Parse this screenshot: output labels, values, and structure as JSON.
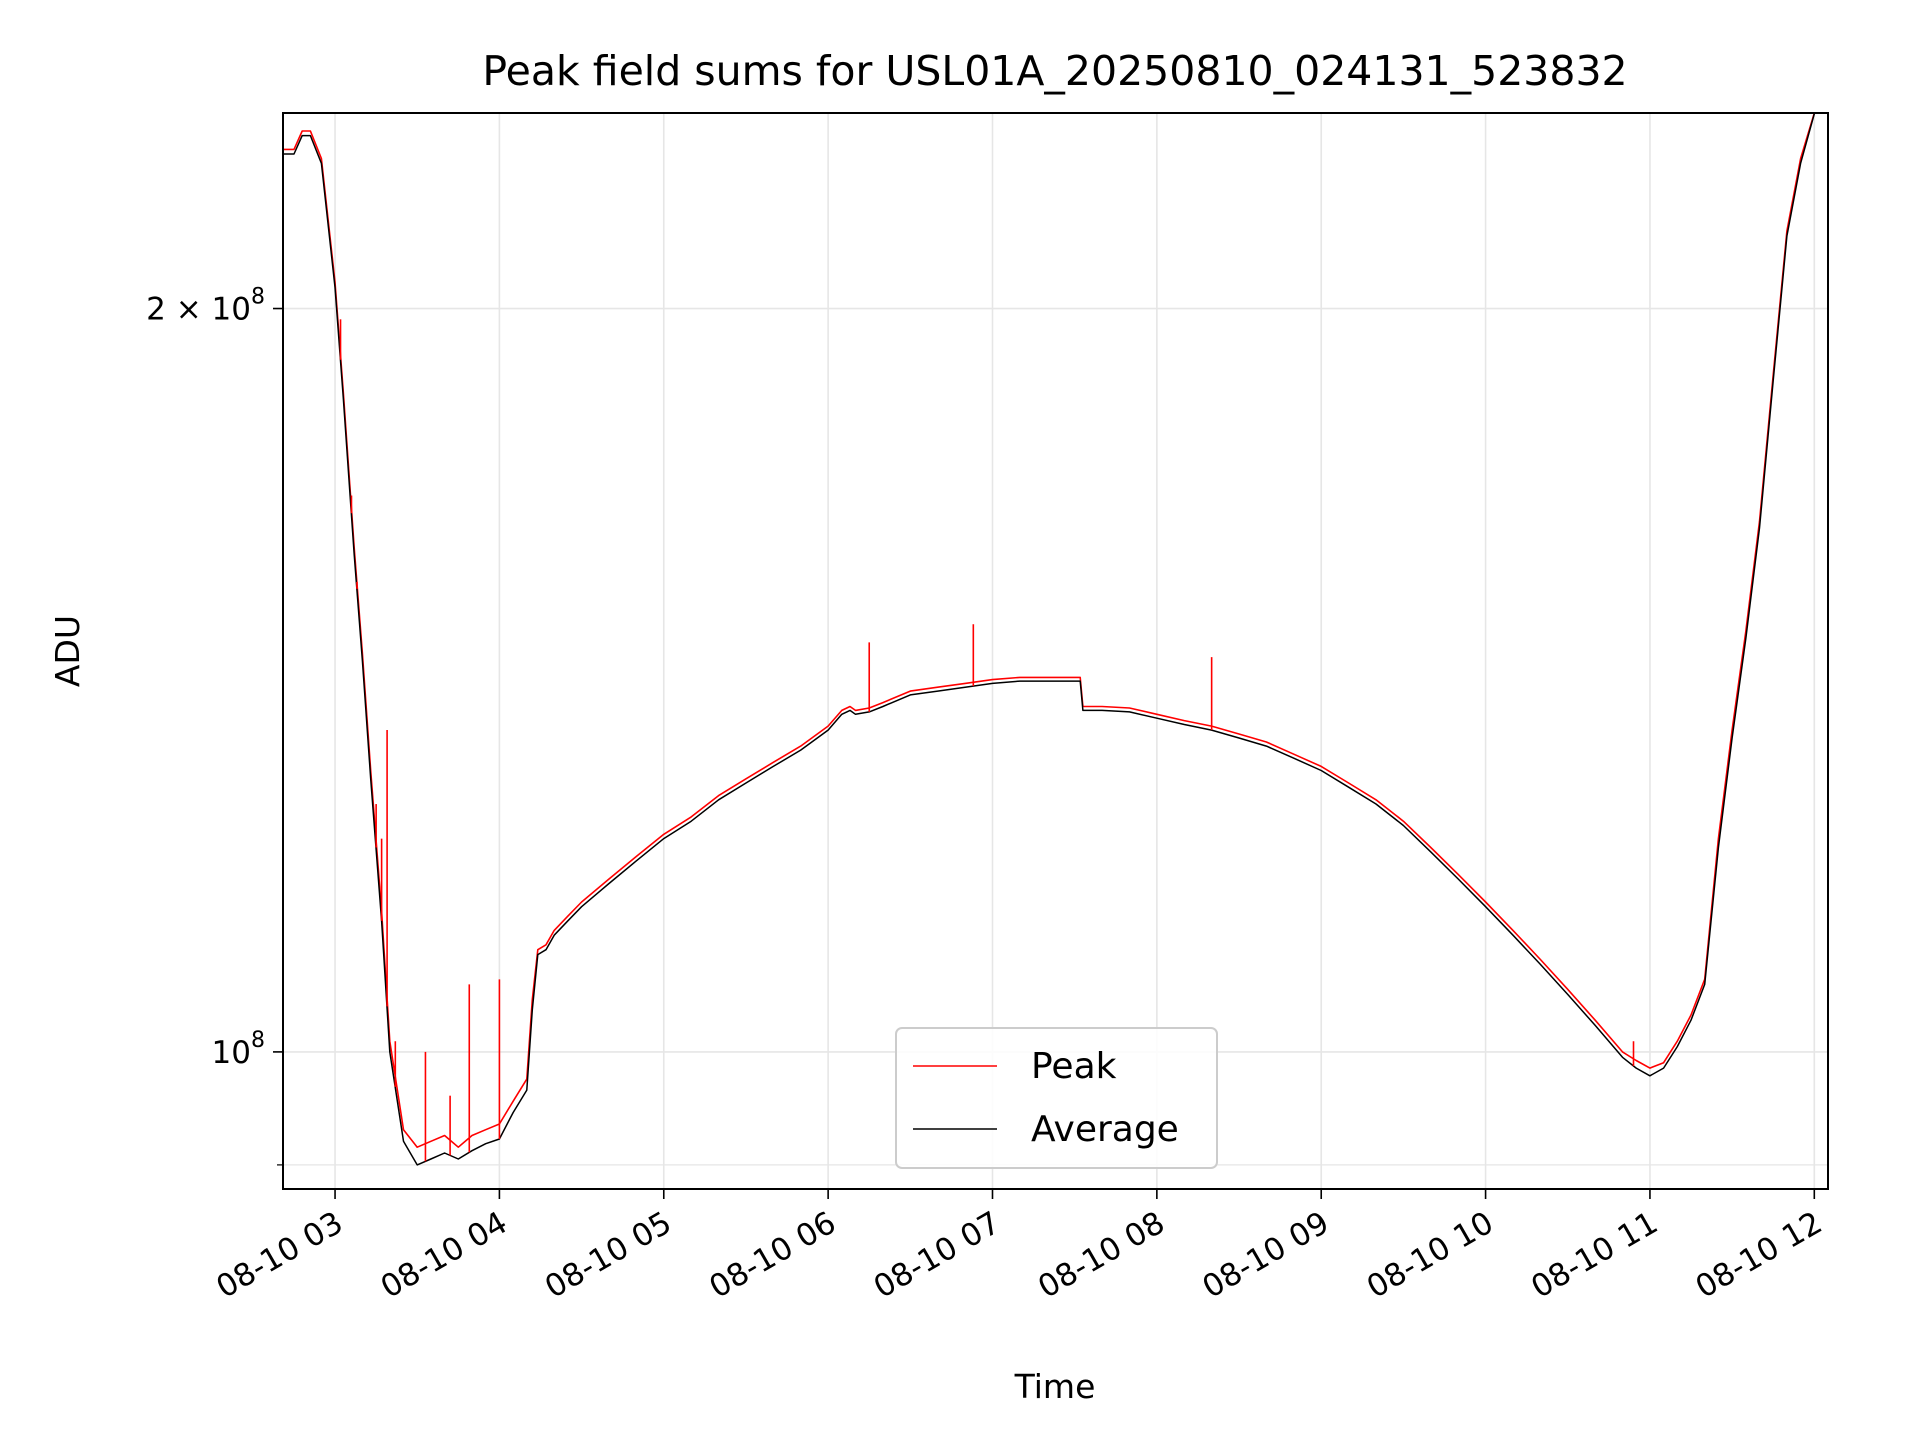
{
  "chart_data": {
    "type": "line",
    "title": "Peak field sums for USL01A_20250810_024131_523832",
    "xlabel": "Time",
    "ylabel": "ADU",
    "yscale": "log",
    "x_unit": "datetime (2025-08-10)",
    "xlim": [
      "2025-08-10 02:41",
      "2025-08-10 12:05"
    ],
    "ylim": [
      88000000,
      240000000
    ],
    "x_ticks": [
      "2025-08-10 03:00",
      "2025-08-10 04:00",
      "2025-08-10 05:00",
      "2025-08-10 06:00",
      "2025-08-10 07:00",
      "2025-08-10 08:00",
      "2025-08-10 09:00",
      "2025-08-10 10:00",
      "2025-08-10 11:00",
      "2025-08-10 12:00"
    ],
    "x_tick_labels": [
      "08-10 03",
      "08-10 04",
      "08-10 05",
      "08-10 06",
      "08-10 07",
      "08-10 08",
      "08-10 09",
      "08-10 10",
      "08-10 11",
      "08-10 12"
    ],
    "y_ticks": [
      {
        "value": 100000000,
        "base": "10",
        "exp": "8",
        "coef": ""
      },
      {
        "value": 200000000,
        "base": "10",
        "exp": "8",
        "coef": "2 × "
      }
    ],
    "grid": true,
    "legend": {
      "placement": "lower-center"
    },
    "series": [
      {
        "name": "Peak",
        "color": "#ff0000",
        "points": [
          [
            "2025-08-10 02:41",
            232000000.0
          ],
          [
            "2025-08-10 02:45",
            232000000.0
          ],
          [
            "2025-08-10 02:48",
            236000000.0
          ],
          [
            "2025-08-10 02:51",
            236000000.0
          ],
          [
            "2025-08-10 02:55",
            230000000.0
          ],
          [
            "2025-08-10 03:00",
            205000000.0
          ],
          [
            "2025-08-10 03:03",
            185000000.0
          ],
          [
            "2025-08-10 03:07",
            160000000.0
          ],
          [
            "2025-08-10 03:10",
            145000000.0
          ],
          [
            "2025-08-10 03:13",
            130000000.0
          ],
          [
            "2025-08-10 03:17",
            114000000.0
          ],
          [
            "2025-08-10 03:20",
            101000000.0
          ],
          [
            "2025-08-10 03:25",
            93000000.0
          ],
          [
            "2025-08-10 03:30",
            91500000.0
          ],
          [
            "2025-08-10 03:35",
            92000000.0
          ],
          [
            "2025-08-10 03:40",
            92500000.0
          ],
          [
            "2025-08-10 03:45",
            91500000.0
          ],
          [
            "2025-08-10 03:50",
            92500000.0
          ],
          [
            "2025-08-10 03:55",
            93000000.0
          ],
          [
            "2025-08-10 04:00",
            93500000.0
          ],
          [
            "2025-08-10 04:05",
            95500000.0
          ],
          [
            "2025-08-10 04:10",
            97500000.0
          ],
          [
            "2025-08-10 04:12",
            105000000.0
          ],
          [
            "2025-08-10 04:14",
            110000000.0
          ],
          [
            "2025-08-10 04:17",
            110500000.0
          ],
          [
            "2025-08-10 04:20",
            112000000.0
          ],
          [
            "2025-08-10 04:25",
            113500000.0
          ],
          [
            "2025-08-10 04:30",
            115000000.0
          ],
          [
            "2025-08-10 04:40",
            117500000.0
          ],
          [
            "2025-08-10 04:50",
            120000000.0
          ],
          [
            "2025-08-10 05:00",
            122500000.0
          ],
          [
            "2025-08-10 05:10",
            124500000.0
          ],
          [
            "2025-08-10 05:20",
            127000000.0
          ],
          [
            "2025-08-10 05:30",
            129000000.0
          ],
          [
            "2025-08-10 05:40",
            131000000.0
          ],
          [
            "2025-08-10 05:50",
            133000000.0
          ],
          [
            "2025-08-10 06:00",
            135500000.0
          ],
          [
            "2025-08-10 06:05",
            137500000.0
          ],
          [
            "2025-08-10 06:08",
            138000000.0
          ],
          [
            "2025-08-10 06:10",
            137500000.0
          ],
          [
            "2025-08-10 06:15",
            137800000.0
          ],
          [
            "2025-08-10 06:20",
            138500000.0
          ],
          [
            "2025-08-10 06:30",
            140000000.0
          ],
          [
            "2025-08-10 06:40",
            140500000.0
          ],
          [
            "2025-08-10 06:50",
            141000000.0
          ],
          [
            "2025-08-10 07:00",
            141500000.0
          ],
          [
            "2025-08-10 07:10",
            141800000.0
          ],
          [
            "2025-08-10 07:20",
            141800000.0
          ],
          [
            "2025-08-10 07:30",
            141800000.0
          ],
          [
            "2025-08-10 07:32",
            141800000.0
          ],
          [
            "2025-08-10 07:33",
            138000000.0
          ],
          [
            "2025-08-10 07:40",
            138000000.0
          ],
          [
            "2025-08-10 07:50",
            137800000.0
          ],
          [
            "2025-08-10 08:00",
            137000000.0
          ],
          [
            "2025-08-10 08:10",
            136200000.0
          ],
          [
            "2025-08-10 08:20",
            135500000.0
          ],
          [
            "2025-08-10 08:30",
            134500000.0
          ],
          [
            "2025-08-10 08:40",
            133500000.0
          ],
          [
            "2025-08-10 08:50",
            132000000.0
          ],
          [
            "2025-08-10 09:00",
            130500000.0
          ],
          [
            "2025-08-10 09:10",
            128500000.0
          ],
          [
            "2025-08-10 09:20",
            126500000.0
          ],
          [
            "2025-08-10 09:30",
            124000000.0
          ],
          [
            "2025-08-10 09:40",
            121000000.0
          ],
          [
            "2025-08-10 09:50",
            118000000.0
          ],
          [
            "2025-08-10 10:00",
            115000000.0
          ],
          [
            "2025-08-10 10:10",
            112000000.0
          ],
          [
            "2025-08-10 10:20",
            109000000.0
          ],
          [
            "2025-08-10 10:30",
            106000000.0
          ],
          [
            "2025-08-10 10:40",
            103000000.0
          ],
          [
            "2025-08-10 10:50",
            100000000.0
          ],
          [
            "2025-08-10 10:55",
            99200000.0
          ],
          [
            "2025-08-10 11:00",
            98500000.0
          ],
          [
            "2025-08-10 11:05",
            99000000.0
          ],
          [
            "2025-08-10 11:10",
            101000000.0
          ],
          [
            "2025-08-10 11:15",
            103500000.0
          ],
          [
            "2025-08-10 11:20",
            107000000.0
          ],
          [
            "2025-08-10 11:25",
            122000000.0
          ],
          [
            "2025-08-10 11:30",
            135000000.0
          ],
          [
            "2025-08-10 11:35",
            148000000.0
          ],
          [
            "2025-08-10 11:40",
            164000000.0
          ],
          [
            "2025-08-10 11:45",
            188000000.0
          ],
          [
            "2025-08-10 11:50",
            215000000.0
          ],
          [
            "2025-08-10 11:55",
            230000000.0
          ],
          [
            "2025-08-10 12:01",
            242000000.0
          ]
        ],
        "spikes": [
          [
            "2025-08-10 03:02",
            198000000.0
          ],
          [
            "2025-08-10 03:06",
            168000000.0
          ],
          [
            "2025-08-10 03:08",
            155000000.0
          ],
          [
            "2025-08-10 03:15",
            126000000.0
          ],
          [
            "2025-08-10 03:17",
            122000000.0
          ],
          [
            "2025-08-10 03:19",
            135000000.0
          ],
          [
            "2025-08-10 03:22",
            101000000.0
          ],
          [
            "2025-08-10 03:33",
            100000000.0
          ],
          [
            "2025-08-10 03:42",
            96000000.0
          ],
          [
            "2025-08-10 03:49",
            106500000.0
          ],
          [
            "2025-08-10 04:00",
            107000000.0
          ],
          [
            "2025-08-10 06:15",
            146500000.0
          ],
          [
            "2025-08-10 06:53",
            149000000.0
          ],
          [
            "2025-08-10 08:20",
            144500000.0
          ],
          [
            "2025-08-10 10:54",
            101000000.0
          ]
        ]
      },
      {
        "name": "Average",
        "color": "#000000",
        "points": [
          [
            "2025-08-10 02:41",
            231000000.0
          ],
          [
            "2025-08-10 02:45",
            231000000.0
          ],
          [
            "2025-08-10 02:48",
            235000000.0
          ],
          [
            "2025-08-10 02:51",
            235000000.0
          ],
          [
            "2025-08-10 02:55",
            229000000.0
          ],
          [
            "2025-08-10 03:00",
            204000000.0
          ],
          [
            "2025-08-10 03:03",
            184000000.0
          ],
          [
            "2025-08-10 03:07",
            159000000.0
          ],
          [
            "2025-08-10 03:10",
            144000000.0
          ],
          [
            "2025-08-10 03:13",
            129000000.0
          ],
          [
            "2025-08-10 03:17",
            113000000.0
          ],
          [
            "2025-08-10 03:20",
            100000000.0
          ],
          [
            "2025-08-10 03:25",
            92000000.0
          ],
          [
            "2025-08-10 03:30",
            90000000.0
          ],
          [
            "2025-08-10 03:35",
            90500000.0
          ],
          [
            "2025-08-10 03:40",
            91000000.0
          ],
          [
            "2025-08-10 03:45",
            90500000.0
          ],
          [
            "2025-08-10 03:50",
            91200000.0
          ],
          [
            "2025-08-10 03:55",
            91800000.0
          ],
          [
            "2025-08-10 04:00",
            92200000.0
          ],
          [
            "2025-08-10 04:05",
            94500000.0
          ],
          [
            "2025-08-10 04:10",
            96500000.0
          ],
          [
            "2025-08-10 04:12",
            104000000.0
          ],
          [
            "2025-08-10 04:14",
            109500000.0
          ],
          [
            "2025-08-10 04:17",
            110000000.0
          ],
          [
            "2025-08-10 04:20",
            111500000.0
          ],
          [
            "2025-08-10 04:25",
            113000000.0
          ],
          [
            "2025-08-10 04:30",
            114500000.0
          ],
          [
            "2025-08-10 04:40",
            117000000.0
          ],
          [
            "2025-08-10 04:50",
            119500000.0
          ],
          [
            "2025-08-10 05:00",
            122000000.0
          ],
          [
            "2025-08-10 05:10",
            124000000.0
          ],
          [
            "2025-08-10 05:20",
            126500000.0
          ],
          [
            "2025-08-10 05:30",
            128500000.0
          ],
          [
            "2025-08-10 05:40",
            130500000.0
          ],
          [
            "2025-08-10 05:50",
            132500000.0
          ],
          [
            "2025-08-10 06:00",
            135000000.0
          ],
          [
            "2025-08-10 06:05",
            137000000.0
          ],
          [
            "2025-08-10 06:08",
            137500000.0
          ],
          [
            "2025-08-10 06:10",
            137000000.0
          ],
          [
            "2025-08-10 06:15",
            137300000.0
          ],
          [
            "2025-08-10 06:20",
            138000000.0
          ],
          [
            "2025-08-10 06:30",
            139500000.0
          ],
          [
            "2025-08-10 06:40",
            140000000.0
          ],
          [
            "2025-08-10 06:50",
            140500000.0
          ],
          [
            "2025-08-10 07:00",
            141000000.0
          ],
          [
            "2025-08-10 07:10",
            141300000.0
          ],
          [
            "2025-08-10 07:20",
            141300000.0
          ],
          [
            "2025-08-10 07:30",
            141300000.0
          ],
          [
            "2025-08-10 07:32",
            141300000.0
          ],
          [
            "2025-08-10 07:33",
            137500000.0
          ],
          [
            "2025-08-10 07:40",
            137500000.0
          ],
          [
            "2025-08-10 07:50",
            137300000.0
          ],
          [
            "2025-08-10 08:00",
            136500000.0
          ],
          [
            "2025-08-10 08:10",
            135700000.0
          ],
          [
            "2025-08-10 08:20",
            135000000.0
          ],
          [
            "2025-08-10 08:30",
            134000000.0
          ],
          [
            "2025-08-10 08:40",
            133000000.0
          ],
          [
            "2025-08-10 08:50",
            131500000.0
          ],
          [
            "2025-08-10 09:00",
            130000000.0
          ],
          [
            "2025-08-10 09:10",
            128000000.0
          ],
          [
            "2025-08-10 09:20",
            126000000.0
          ],
          [
            "2025-08-10 09:30",
            123500000.0
          ],
          [
            "2025-08-10 09:40",
            120500000.0
          ],
          [
            "2025-08-10 09:50",
            117500000.0
          ],
          [
            "2025-08-10 10:00",
            114500000.0
          ],
          [
            "2025-08-10 10:10",
            111500000.0
          ],
          [
            "2025-08-10 10:20",
            108500000.0
          ],
          [
            "2025-08-10 10:30",
            105500000.0
          ],
          [
            "2025-08-10 10:40",
            102500000.0
          ],
          [
            "2025-08-10 10:50",
            99500000.0
          ],
          [
            "2025-08-10 10:55",
            98500000.0
          ],
          [
            "2025-08-10 11:00",
            97800000.0
          ],
          [
            "2025-08-10 11:05",
            98500000.0
          ],
          [
            "2025-08-10 11:10",
            100500000.0
          ],
          [
            "2025-08-10 11:15",
            103000000.0
          ],
          [
            "2025-08-10 11:20",
            106500000.0
          ],
          [
            "2025-08-10 11:25",
            121000000.0
          ],
          [
            "2025-08-10 11:30",
            134000000.0
          ],
          [
            "2025-08-10 11:35",
            147000000.0
          ],
          [
            "2025-08-10 11:40",
            163000000.0
          ],
          [
            "2025-08-10 11:45",
            187000000.0
          ],
          [
            "2025-08-10 11:50",
            214000000.0
          ],
          [
            "2025-08-10 11:55",
            229000000.0
          ],
          [
            "2025-08-10 12:01",
            242000000.0
          ]
        ]
      }
    ]
  }
}
